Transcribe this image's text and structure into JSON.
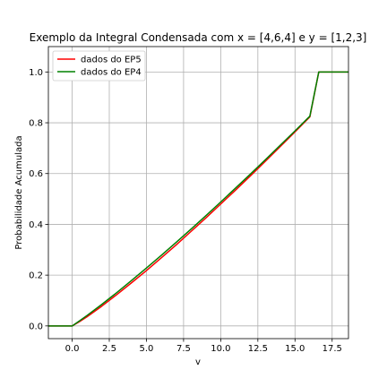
{
  "chart_data": {
    "type": "line",
    "title": "Exemplo da Integral Condensada com x = [4,6,4] e y = [1,2,3]",
    "xlabel": "v",
    "ylabel": "Probabilidade Acumulada",
    "xlim": [
      -1.6,
      18.6
    ],
    "ylim": [
      -0.05,
      1.1
    ],
    "x_ticks": [
      "0.0",
      "2.5",
      "5.0",
      "7.5",
      "10.0",
      "12.5",
      "15.0",
      "17.5"
    ],
    "y_ticks": [
      "0.0",
      "0.2",
      "0.4",
      "0.6",
      "0.8",
      "1.0"
    ],
    "grid": true,
    "legend_position": "top-left",
    "series": [
      {
        "name": "dados do EP5",
        "color": "#ff0000",
        "x": [
          -1.6,
          0.0,
          0.5,
          1.0,
          2.0,
          3.0,
          4.0,
          5.0,
          6.0,
          7.0,
          8.0,
          9.0,
          10.0,
          11.0,
          12.0,
          13.0,
          14.0,
          15.0,
          16.0,
          16.6,
          18.6
        ],
        "y": [
          0.0,
          0.0,
          0.017,
          0.036,
          0.078,
          0.123,
          0.17,
          0.218,
          0.268,
          0.319,
          0.372,
          0.425,
          0.48,
          0.535,
          0.591,
          0.648,
          0.706,
          0.764,
          0.823,
          1.0,
          1.0
        ]
      },
      {
        "name": "dados do EP4",
        "color": "#008000",
        "x": [
          -1.6,
          0.0,
          0.5,
          1.0,
          2.0,
          3.0,
          4.0,
          5.0,
          6.0,
          7.0,
          8.0,
          9.0,
          10.0,
          11.0,
          12.0,
          13.0,
          14.0,
          15.0,
          16.0,
          16.6,
          18.6
        ],
        "y": [
          0.0,
          0.0,
          0.02,
          0.041,
          0.085,
          0.131,
          0.179,
          0.228,
          0.278,
          0.329,
          0.381,
          0.434,
          0.488,
          0.543,
          0.598,
          0.654,
          0.711,
          0.768,
          0.826,
          1.0,
          1.0
        ]
      }
    ]
  }
}
